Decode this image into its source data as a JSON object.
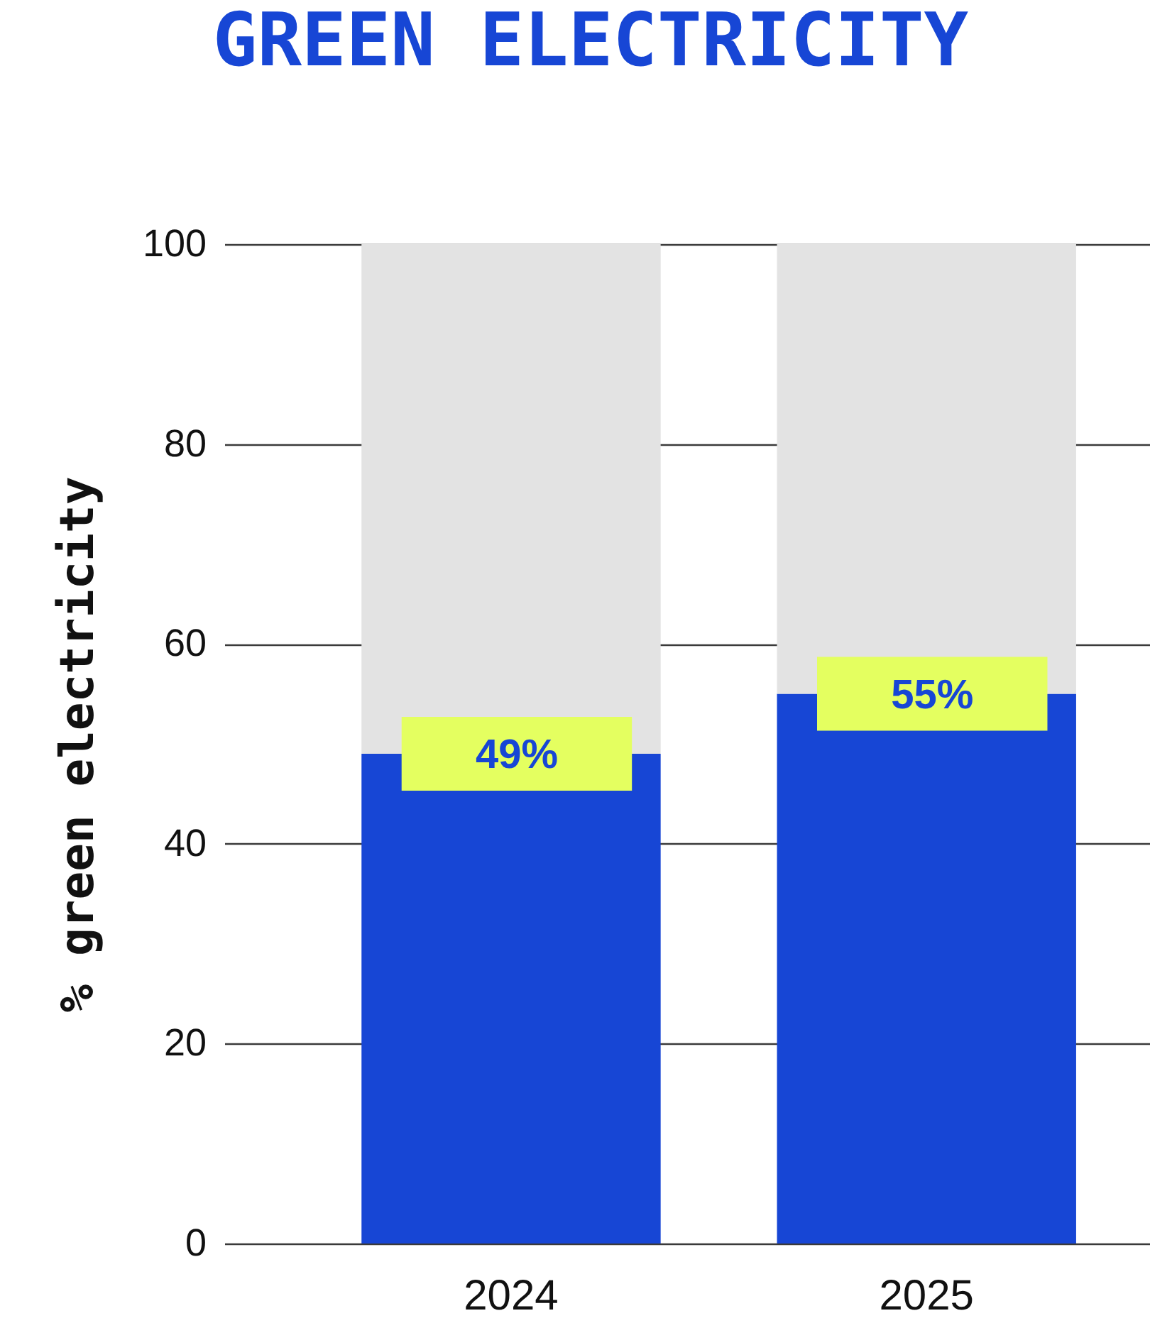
{
  "chart_data": {
    "type": "bar",
    "title": "GREEN ELECTRICITY",
    "ylabel": "% green electricity",
    "categories": [
      "2024",
      "2025"
    ],
    "stacked": true,
    "series": [
      {
        "color": "#1746d5",
        "values": [
          49,
          55
        ],
        "value_labels": [
          "49%",
          "55%"
        ]
      },
      {
        "color": "#e3e3e3",
        "values": [
          51,
          45
        ]
      }
    ],
    "ylim": [
      0,
      100
    ],
    "yticks": [
      0,
      20,
      40,
      60,
      80,
      100
    ],
    "grid": "y"
  }
}
